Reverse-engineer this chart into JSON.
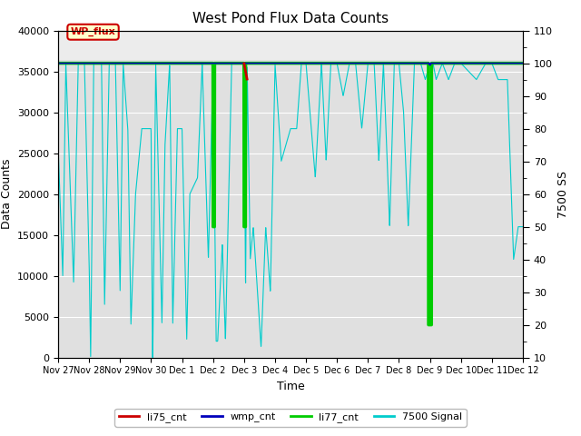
{
  "title": "West Pond Flux Data Counts",
  "xlabel": "Time",
  "ylabel_left": "Data Counts",
  "ylabel_right": "7500 SS",
  "ylim_left": [
    0,
    40000
  ],
  "ylim_right": [
    10,
    110
  ],
  "x_tick_labels": [
    "Nov 27",
    "Nov 28",
    "Nov 29",
    "Nov 30",
    "Dec 1",
    "Dec 2",
    "Dec 3",
    "Dec 4",
    "Dec 5",
    "Dec 6",
    "Dec 7",
    "Dec 8",
    "Dec 9",
    "Dec 10",
    "Dec 11",
    "Dec 12"
  ],
  "bg_color": "#e0e0e0",
  "li77_color": "#00cc00",
  "wmp_color": "#0000bb",
  "li75_color": "#cc0000",
  "signal_color": "#00cccc",
  "wp_flux_box_color": "#ffffcc",
  "wp_flux_text_color": "#cc0000",
  "legend_labels": [
    "li75_cnt",
    "wmp_cnt",
    "li77_cnt",
    "7500 Signal"
  ],
  "legend_colors": [
    "#cc0000",
    "#0000bb",
    "#00cc00",
    "#00cccc"
  ]
}
